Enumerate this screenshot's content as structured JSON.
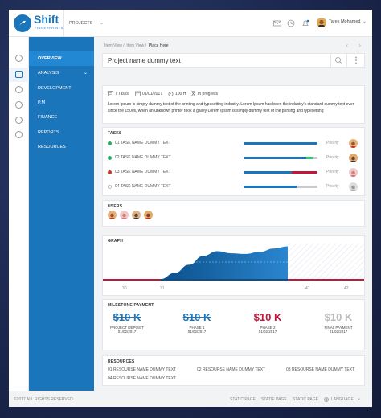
{
  "brand": {
    "name": "Shift",
    "tagline": "FINGERPRINTS"
  },
  "topbar": {
    "project_selector": "PROJECTS",
    "user_name": "Tarek Mohamed"
  },
  "sidebar": {
    "items": [
      {
        "label": "OVERVIEW",
        "active": true
      },
      {
        "label": "ANALYSIS",
        "active": false,
        "has_chevron": true
      },
      {
        "label": "DEVELOPMENT",
        "active": false
      },
      {
        "label": "P.M",
        "active": false
      },
      {
        "label": "FINANCE",
        "active": false
      },
      {
        "label": "REPORTS",
        "active": false
      },
      {
        "label": "RESOURCES",
        "active": false
      }
    ]
  },
  "breadcrumb": {
    "items": [
      "Item View /",
      "Item View /"
    ],
    "current": "Place Here"
  },
  "project": {
    "title": "Project name dummy text",
    "tasks_count": "7 Tasks",
    "date": "01/01/2017",
    "hours": "100 H",
    "status": "In progress",
    "description": "Lorem Ipsum is simply dummy text of the printing and typesetting industry. Lorem Ipsum has been the industry's standard dummy text ever since the 1500s, when an unknown printer took a galley Lorem Ipsum is simply dummy text of the printing and typesetting"
  },
  "tasks": {
    "heading": "TASKS",
    "items": [
      {
        "label": "01 TASK NAME DUMMY TEXT",
        "status_color": "#27ae60",
        "progress": 1.0,
        "segment": null,
        "priority": "Priority"
      },
      {
        "label": "02 TASK NAME DUMMY TEXT",
        "status_color": "#27ae60",
        "progress": 0.85,
        "segment": {
          "color": "#2ecc71",
          "from": 0.85,
          "to": 0.93
        },
        "priority": "Priority"
      },
      {
        "label": "03 TASK NAME DUMMY TEXT",
        "status_color": "#c0392b",
        "progress": 0.65,
        "segment": {
          "color": "#c0183c",
          "from": 0.65,
          "to": 1.0
        },
        "priority": "Priority"
      },
      {
        "label": "04 TASK NAME DUMMY TEXT",
        "status_color": "#cccccc",
        "progress": 0.72,
        "segment": null,
        "priority": "Priority"
      }
    ]
  },
  "users": {
    "heading": "USERS"
  },
  "graph": {
    "heading": "GRAPH",
    "tick_labels": [
      "30",
      "31",
      "41",
      "42"
    ],
    "chart_data": {
      "type": "area",
      "x_ticks": [
        "30",
        "31",
        "41",
        "42"
      ],
      "series": [
        {
          "values": [
            0.0,
            0.18,
            0.42,
            0.68,
            0.82,
            0.76,
            0.74,
            0.8,
            0.9,
            0.96
          ]
        }
      ]
    }
  },
  "milestone": {
    "heading": "MILESTONE PAYMENT",
    "items": [
      {
        "amount": "$10 K",
        "name": "PROJECT DEPOSIT",
        "date": "01/02/2017",
        "color": "#1b75bb",
        "struck": true
      },
      {
        "amount": "$10 K",
        "name": "PHASE 1",
        "date": "01/02/2017",
        "color": "#1b75bb",
        "struck": true
      },
      {
        "amount": "$10 K",
        "name": "PHASE 2",
        "date": "01/02/2017",
        "color": "#c0183c",
        "struck": false
      },
      {
        "amount": "$10 K",
        "name": "FINAL PAYMENT",
        "date": "01/02/2017",
        "color": "#bbbbbb",
        "struck": false
      }
    ]
  },
  "resources": {
    "heading": "RESOURCES",
    "items": [
      "01 RESOURSE NAME DUMMY TEXT",
      "02 RESOURSE NAME DUMMY TEXT",
      "03 RESOURSE NAME DUMMY TEXT",
      "04 RESOURSE NAME DUMMY TEXT"
    ]
  },
  "footer": {
    "copyright": "©2017 ALL RIGHTS RESERVED",
    "links": [
      "STATIC PAGE",
      "STATIE PAGE",
      "STATIC PAGE"
    ],
    "language": "LANGUAGE"
  }
}
